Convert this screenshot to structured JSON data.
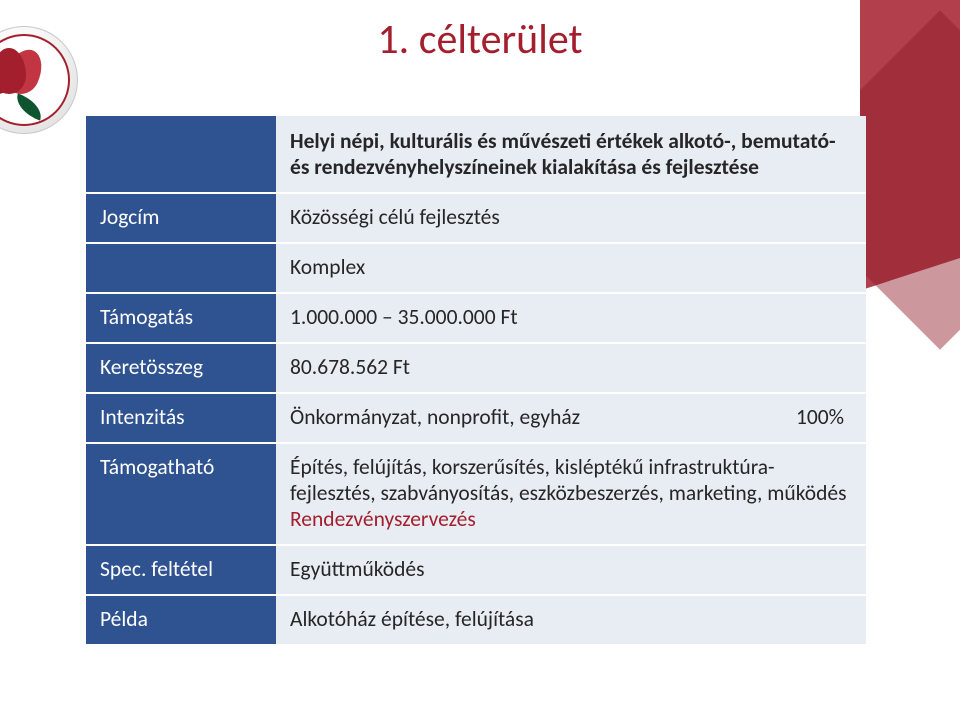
{
  "colors": {
    "accent_red": "#a31f2d",
    "header_blue": "#2f5291",
    "row_band": "#e8ecf3",
    "text": "#262626",
    "background": "#ffffff"
  },
  "typography": {
    "body_fontsize_pt": 16,
    "title_fontsize_pt": 32,
    "font_family": "Calibri"
  },
  "title": "1. célterület",
  "description": "Helyi népi, kulturális és művészeti értékek alkotó-, bemutató- és rendezvényhelyszíneinek kialakítása és fejlesztése",
  "rows": {
    "jogcim": {
      "label": "Jogcím",
      "value": "Közösségi célú fejlesztés"
    },
    "komplex": {
      "value": "Komplex"
    },
    "tamogatas": {
      "label": "Támogatás",
      "value": "1.000.000 – 35.000.000 Ft"
    },
    "keretosszeg": {
      "label": "Keretösszeg",
      "value": "80.678.562 Ft"
    },
    "intenzitas": {
      "label": "Intenzitás",
      "value": "Önkormányzat, nonprofit, egyház",
      "pct": "100%"
    },
    "tamogathato": {
      "label": "Támogatható",
      "value_line1": "Építés, felújítás, korszerűsítés, kisléptékű infrastruktúra-fejlesztés, szabványosítás, eszközbeszerzés, marketing, működés",
      "value_line2": "Rendezvényszervezés"
    },
    "spec": {
      "label": "Spec. feltétel",
      "value": "Együttműködés"
    },
    "pelda": {
      "label": "Példa",
      "value": "Alkotóház építése, felújítása"
    }
  }
}
